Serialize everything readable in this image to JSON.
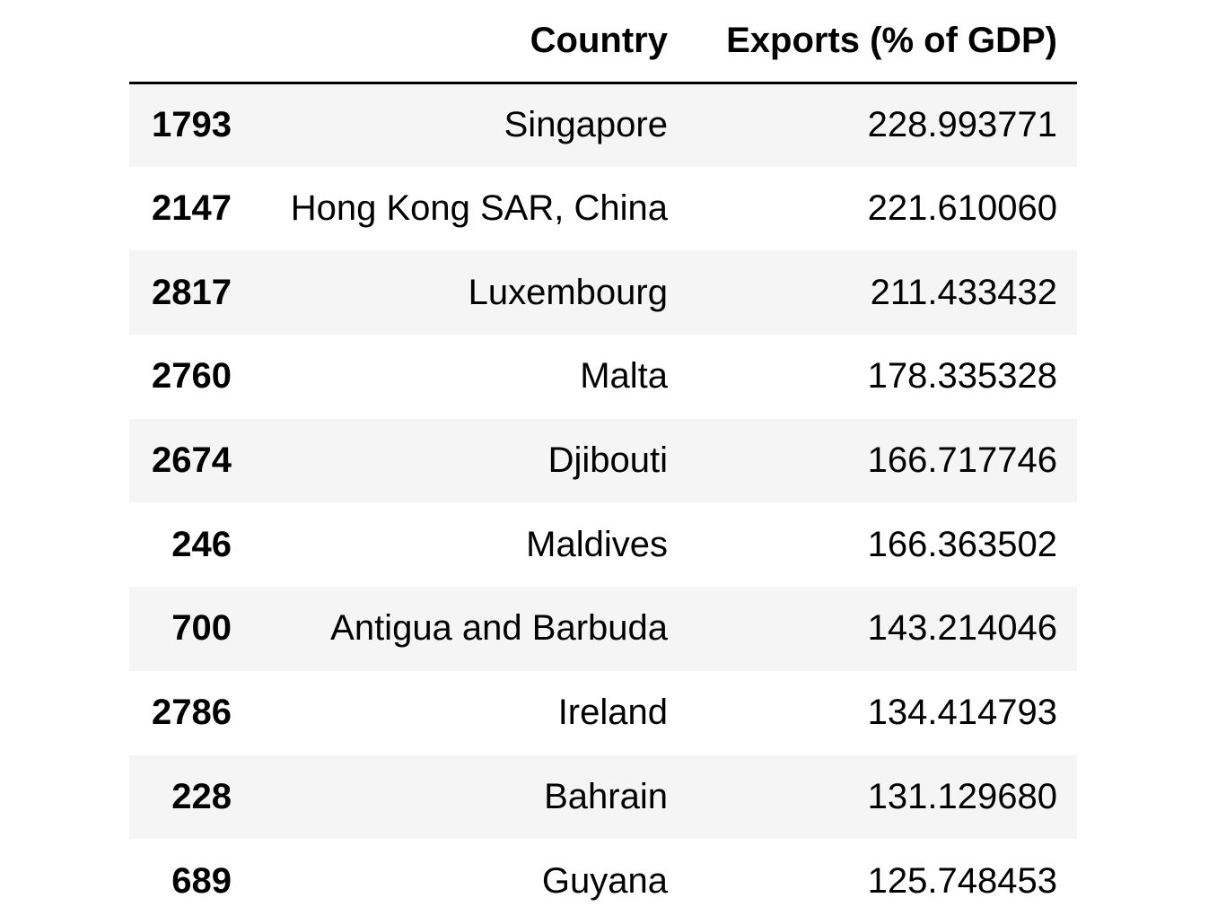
{
  "table": {
    "columns": {
      "index": "",
      "country": "Country",
      "exports": "Exports (% of GDP)"
    },
    "rows": [
      {
        "index": "1793",
        "country": "Singapore",
        "exports": "228.993771"
      },
      {
        "index": "2147",
        "country": "Hong Kong SAR, China",
        "exports": "221.610060"
      },
      {
        "index": "2817",
        "country": "Luxembourg",
        "exports": "211.433432"
      },
      {
        "index": "2760",
        "country": "Malta",
        "exports": "178.335328"
      },
      {
        "index": "2674",
        "country": "Djibouti",
        "exports": "166.717746"
      },
      {
        "index": "246",
        "country": "Maldives",
        "exports": "166.363502"
      },
      {
        "index": "700",
        "country": "Antigua and Barbuda",
        "exports": "143.214046"
      },
      {
        "index": "2786",
        "country": "Ireland",
        "exports": "134.414793"
      },
      {
        "index": "228",
        "country": "Bahrain",
        "exports": "131.129680"
      },
      {
        "index": "689",
        "country": "Guyana",
        "exports": "125.748453"
      }
    ]
  },
  "colors": {
    "stripe": "#f5f5f5",
    "header_rule": "#000000",
    "text": "#000000"
  }
}
